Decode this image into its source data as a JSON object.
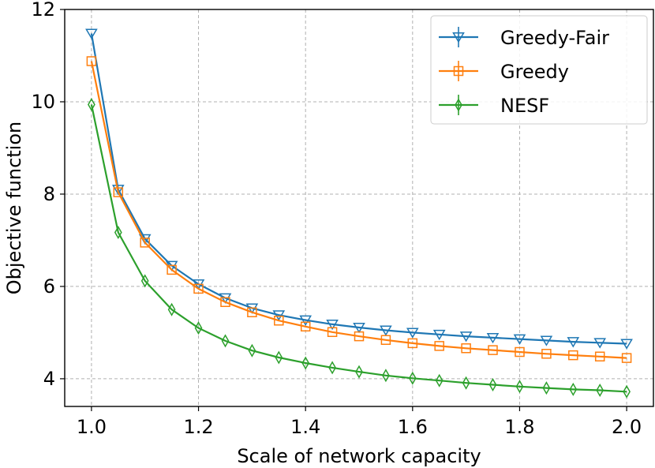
{
  "chart_data": {
    "type": "line",
    "title": "",
    "xlabel": "Scale of network capacity",
    "ylabel": "Objective function",
    "xlim": [
      0.95,
      2.05
    ],
    "ylim": [
      3.4,
      12.0
    ],
    "xticks": [
      1.0,
      1.2,
      1.4,
      1.6,
      1.8,
      2.0
    ],
    "xtick_labels": [
      "1.0",
      "1.2",
      "1.4",
      "1.6",
      "1.8",
      "2.0"
    ],
    "yticks": [
      4,
      6,
      8,
      10,
      12
    ],
    "ytick_labels": [
      "4",
      "6",
      "8",
      "10",
      "12"
    ],
    "grid": true,
    "legend_position": "top-right",
    "x": [
      1.0,
      1.05,
      1.1,
      1.15,
      1.2,
      1.25,
      1.3,
      1.35,
      1.4,
      1.45,
      1.5,
      1.55,
      1.6,
      1.65,
      1.7,
      1.75,
      1.8,
      1.85,
      1.9,
      1.95,
      2.0
    ],
    "series": [
      {
        "name": "Greedy-Fair",
        "color": "#1f77b4",
        "marker": "triangle-down",
        "values": [
          11.48,
          8.1,
          7.03,
          6.45,
          6.05,
          5.75,
          5.53,
          5.38,
          5.27,
          5.18,
          5.11,
          5.05,
          5.0,
          4.96,
          4.92,
          4.89,
          4.86,
          4.83,
          4.8,
          4.78,
          4.76
        ]
      },
      {
        "name": "Greedy",
        "color": "#ff7f0e",
        "marker": "square",
        "values": [
          10.88,
          8.04,
          6.95,
          6.36,
          5.95,
          5.66,
          5.44,
          5.26,
          5.13,
          5.01,
          4.92,
          4.84,
          4.77,
          4.71,
          4.66,
          4.62,
          4.58,
          4.54,
          4.51,
          4.48,
          4.45
        ]
      },
      {
        "name": "NESF",
        "color": "#2ca02c",
        "marker": "thin-diamond",
        "values": [
          9.94,
          7.17,
          6.12,
          5.5,
          5.1,
          4.82,
          4.61,
          4.46,
          4.34,
          4.24,
          4.15,
          4.07,
          4.01,
          3.96,
          3.91,
          3.87,
          3.83,
          3.8,
          3.77,
          3.75,
          3.72
        ]
      }
    ]
  }
}
